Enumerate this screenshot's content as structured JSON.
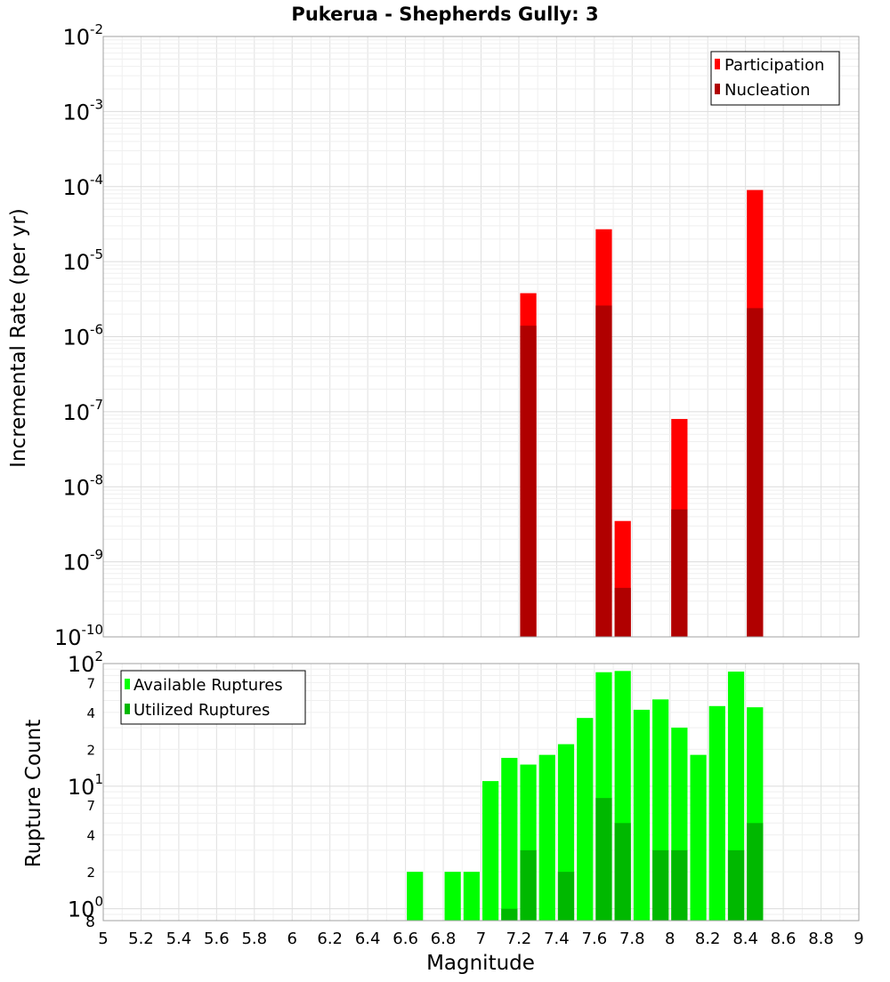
{
  "title": "Pukerua - Shepherds Gully: 3",
  "colors": {
    "participation": "#ff0000",
    "nucleation": "#b00000",
    "available": "#00ff00",
    "utilized": "#00b800",
    "grid": "#e6e6e6"
  },
  "chart_data": [
    {
      "type": "bar",
      "name": "rate-panel",
      "scale": "log",
      "ylabel": "Incremental Rate (per yr)",
      "ylim": [
        1e-10,
        0.01
      ],
      "xlim": [
        5,
        9
      ],
      "y_ticks": [
        {
          "base": "10",
          "exp": "-10",
          "value": 1e-10
        },
        {
          "base": "10",
          "exp": "-9",
          "value": 1e-09
        },
        {
          "base": "10",
          "exp": "-8",
          "value": 1e-08
        },
        {
          "base": "10",
          "exp": "-7",
          "value": 1e-07
        },
        {
          "base": "10",
          "exp": "-6",
          "value": 1e-06
        },
        {
          "base": "10",
          "exp": "-5",
          "value": 1e-05
        },
        {
          "base": "10",
          "exp": "-4",
          "value": 0.0001
        },
        {
          "base": "10",
          "exp": "-3",
          "value": 0.001
        },
        {
          "base": "10",
          "exp": "-2",
          "value": 0.01
        }
      ],
      "legend": [
        "Participation",
        "Nucleation"
      ],
      "legend_position": "top-right",
      "series": [
        {
          "name": "Participation",
          "x": [
            7.25,
            7.65,
            7.75,
            8.05,
            8.45
          ],
          "values": [
            3.8e-06,
            2.7e-05,
            3.5e-09,
            8e-08,
            9e-05
          ]
        },
        {
          "name": "Nucleation",
          "x": [
            7.25,
            7.65,
            7.75,
            8.05,
            8.45
          ],
          "values": [
            1.4e-06,
            2.6e-06,
            4.5e-10,
            5e-09,
            2.4e-06
          ]
        }
      ]
    },
    {
      "type": "bar",
      "name": "count-panel",
      "scale": "log",
      "ylabel": "Rupture Count",
      "xlabel": "Magnitude",
      "ylim": [
        0.8,
        100
      ],
      "xlim": [
        5,
        9
      ],
      "y_major_ticks": [
        {
          "base": "10",
          "exp": "0",
          "value": 1
        },
        {
          "base": "10",
          "exp": "1",
          "value": 10
        },
        {
          "base": "10",
          "exp": "2",
          "value": 100
        }
      ],
      "y_minor_ticks": [
        {
          "label": "2",
          "value": 2
        },
        {
          "label": "4",
          "value": 4
        },
        {
          "label": "7",
          "value": 7
        },
        {
          "label": "2",
          "value": 20
        },
        {
          "label": "4",
          "value": 40
        },
        {
          "label": "7",
          "value": 70
        }
      ],
      "y_floor_label": "8",
      "x_ticks": [
        "5",
        "5.2",
        "5.4",
        "5.6",
        "5.8",
        "6",
        "6.2",
        "6.4",
        "6.6",
        "6.8",
        "7",
        "7.2",
        "7.4",
        "7.6",
        "7.8",
        "8",
        "8.2",
        "8.4",
        "8.6",
        "8.8",
        "9"
      ],
      "legend": [
        "Available Ruptures",
        "Utilized Ruptures"
      ],
      "legend_position": "top-left",
      "series": [
        {
          "name": "Available Ruptures",
          "x": [
            6.65,
            6.85,
            6.95,
            7.05,
            7.15,
            7.25,
            7.35,
            7.45,
            7.55,
            7.65,
            7.75,
            7.85,
            7.95,
            8.05,
            8.15,
            8.25,
            8.35,
            8.45
          ],
          "values": [
            2,
            2,
            2,
            11,
            17,
            15,
            18,
            22,
            36,
            85,
            87,
            42,
            51,
            30,
            18,
            45,
            86,
            44
          ]
        },
        {
          "name": "Utilized Ruptures",
          "x": [
            7.15,
            7.25,
            7.45,
            7.65,
            7.75,
            7.95,
            8.05,
            8.35,
            8.45
          ],
          "values": [
            1,
            3,
            2,
            8,
            5,
            3,
            3,
            3,
            5
          ]
        }
      ]
    }
  ]
}
